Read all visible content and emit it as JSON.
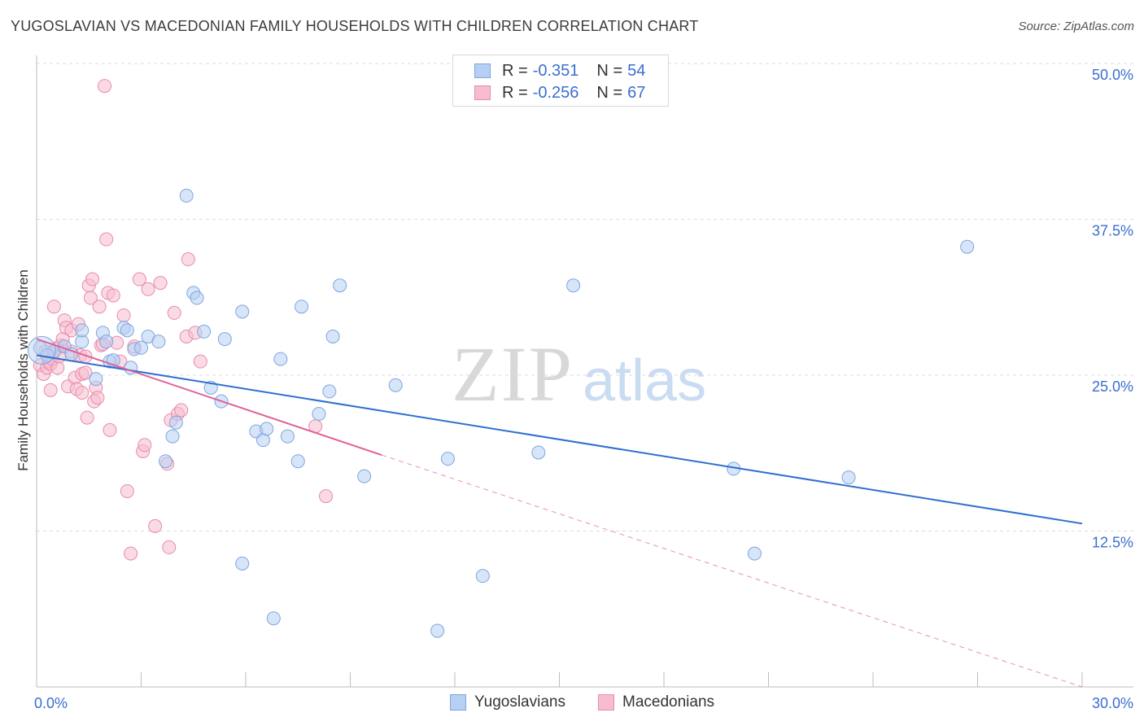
{
  "title": "YUGOSLAVIAN VS MACEDONIAN FAMILY HOUSEHOLDS WITH CHILDREN CORRELATION CHART",
  "source": "Source: ZipAtlas.com",
  "watermark": {
    "zip": "ZIP",
    "atlas": "atlas"
  },
  "legend": {
    "rows": [
      {
        "r_label": "R =",
        "r_value": "-0.351",
        "n_label": "N =",
        "n_value": "54"
      },
      {
        "r_label": "R =",
        "r_value": "-0.256",
        "n_label": "N =",
        "n_value": "67"
      }
    ]
  },
  "bottom_legend": {
    "yugoslavians": "Yugoslavians",
    "macedonians": "Macedonians"
  },
  "colors": {
    "blue_fill": "#b7cff2",
    "blue_stroke": "#7ea6e0",
    "blue_line": "#2f6fd0",
    "pink_fill": "#f6bdd0",
    "pink_stroke": "#e98aaa",
    "pink_line": "#e0609a",
    "grid": "#dcdcdc",
    "axis_label": "#3a6fce"
  },
  "chart_data": {
    "type": "scatter",
    "title": "YUGOSLAVIAN VS MACEDONIAN FAMILY HOUSEHOLDS WITH CHILDREN CORRELATION CHART",
    "xlabel": "",
    "ylabel": "Family Households with Children",
    "xlim": [
      0,
      30
    ],
    "ylim": [
      0,
      50
    ],
    "x_tick_labels": [
      "0.0%",
      "30.0%"
    ],
    "y_ticks": [
      12.5,
      25.0,
      37.5,
      50.0
    ],
    "y_tick_labels": [
      "12.5%",
      "25.0%",
      "37.5%",
      "50.0%"
    ],
    "series": [
      {
        "name": "Yugoslavians",
        "r": -0.351,
        "n": 54,
        "trend": {
          "x0": 0,
          "y0": 26.6,
          "x1": 30,
          "y1": 13.1
        },
        "points": [
          [
            0.1,
            27.2
          ],
          [
            0.5,
            26.9
          ],
          [
            0.8,
            27.3
          ],
          [
            1.0,
            26.7
          ],
          [
            1.3,
            27.7
          ],
          [
            1.3,
            28.6
          ],
          [
            1.7,
            24.7
          ],
          [
            1.9,
            28.4
          ],
          [
            2.0,
            27.7
          ],
          [
            2.1,
            26.1
          ],
          [
            2.2,
            26.2
          ],
          [
            2.5,
            28.8
          ],
          [
            2.6,
            28.6
          ],
          [
            2.7,
            25.6
          ],
          [
            2.8,
            27.1
          ],
          [
            3.0,
            27.2
          ],
          [
            3.2,
            28.1
          ],
          [
            3.5,
            27.7
          ],
          [
            3.7,
            18.1
          ],
          [
            3.9,
            20.1
          ],
          [
            4.0,
            21.2
          ],
          [
            4.3,
            39.4
          ],
          [
            4.5,
            31.6
          ],
          [
            4.6,
            31.2
          ],
          [
            4.8,
            28.5
          ],
          [
            5.0,
            24.0
          ],
          [
            5.3,
            22.9
          ],
          [
            5.4,
            27.9
          ],
          [
            5.9,
            30.1
          ],
          [
            5.9,
            9.9
          ],
          [
            6.3,
            20.5
          ],
          [
            6.5,
            19.8
          ],
          [
            6.6,
            20.7
          ],
          [
            6.8,
            5.5
          ],
          [
            7.0,
            26.3
          ],
          [
            7.2,
            20.1
          ],
          [
            7.5,
            18.1
          ],
          [
            7.6,
            30.5
          ],
          [
            8.1,
            21.9
          ],
          [
            8.4,
            23.7
          ],
          [
            8.5,
            28.1
          ],
          [
            8.7,
            32.2
          ],
          [
            9.4,
            16.9
          ],
          [
            10.3,
            24.2
          ],
          [
            11.5,
            4.5
          ],
          [
            11.8,
            18.3
          ],
          [
            12.8,
            8.9
          ],
          [
            14.4,
            18.8
          ],
          [
            15.4,
            32.2
          ],
          [
            20.0,
            17.5
          ],
          [
            20.6,
            10.7
          ],
          [
            23.3,
            16.8
          ],
          [
            26.7,
            35.3
          ],
          [
            0.3,
            26.6
          ]
        ]
      },
      {
        "name": "Macedonians",
        "r": -0.256,
        "n": 67,
        "trend": {
          "x0": 0,
          "y0": 27.9,
          "x1": 9.9,
          "y1": 18.6,
          "dash_x1": 30,
          "dash_y1": 0
        },
        "points": [
          [
            0.1,
            25.8
          ],
          [
            0.2,
            25.1
          ],
          [
            0.25,
            26.9
          ],
          [
            0.3,
            25.6
          ],
          [
            0.35,
            26.1
          ],
          [
            0.4,
            23.8
          ],
          [
            0.4,
            25.9
          ],
          [
            0.45,
            26.3
          ],
          [
            0.5,
            30.5
          ],
          [
            0.5,
            26.9
          ],
          [
            0.6,
            27.2
          ],
          [
            0.6,
            25.6
          ],
          [
            0.65,
            26.5
          ],
          [
            0.7,
            27.4
          ],
          [
            0.75,
            27.9
          ],
          [
            0.8,
            29.4
          ],
          [
            0.85,
            28.8
          ],
          [
            0.9,
            24.1
          ],
          [
            1.0,
            26.9
          ],
          [
            1.0,
            28.6
          ],
          [
            1.1,
            24.8
          ],
          [
            1.15,
            23.9
          ],
          [
            1.2,
            29.1
          ],
          [
            1.25,
            26.6
          ],
          [
            1.3,
            23.6
          ],
          [
            1.3,
            25.1
          ],
          [
            1.4,
            26.5
          ],
          [
            1.4,
            25.2
          ],
          [
            1.45,
            21.6
          ],
          [
            1.5,
            32.2
          ],
          [
            1.55,
            31.2
          ],
          [
            1.6,
            32.7
          ],
          [
            1.65,
            22.9
          ],
          [
            1.7,
            24.0
          ],
          [
            1.75,
            23.2
          ],
          [
            1.8,
            30.5
          ],
          [
            1.85,
            27.4
          ],
          [
            1.9,
            27.5
          ],
          [
            1.95,
            48.2
          ],
          [
            2.0,
            35.9
          ],
          [
            2.05,
            31.6
          ],
          [
            2.1,
            20.6
          ],
          [
            2.2,
            31.4
          ],
          [
            2.3,
            27.6
          ],
          [
            2.4,
            26.1
          ],
          [
            2.5,
            29.8
          ],
          [
            2.6,
            15.7
          ],
          [
            2.7,
            10.7
          ],
          [
            2.8,
            27.3
          ],
          [
            2.95,
            32.7
          ],
          [
            3.05,
            18.9
          ],
          [
            3.1,
            19.4
          ],
          [
            3.2,
            31.9
          ],
          [
            3.4,
            12.9
          ],
          [
            3.55,
            32.4
          ],
          [
            3.75,
            17.9
          ],
          [
            3.8,
            11.2
          ],
          [
            3.85,
            21.4
          ],
          [
            3.95,
            30.0
          ],
          [
            4.05,
            21.9
          ],
          [
            4.15,
            22.2
          ],
          [
            4.3,
            28.1
          ],
          [
            4.35,
            34.3
          ],
          [
            4.55,
            28.4
          ],
          [
            4.7,
            26.1
          ],
          [
            8.0,
            20.9
          ],
          [
            8.3,
            15.3
          ]
        ]
      }
    ]
  }
}
